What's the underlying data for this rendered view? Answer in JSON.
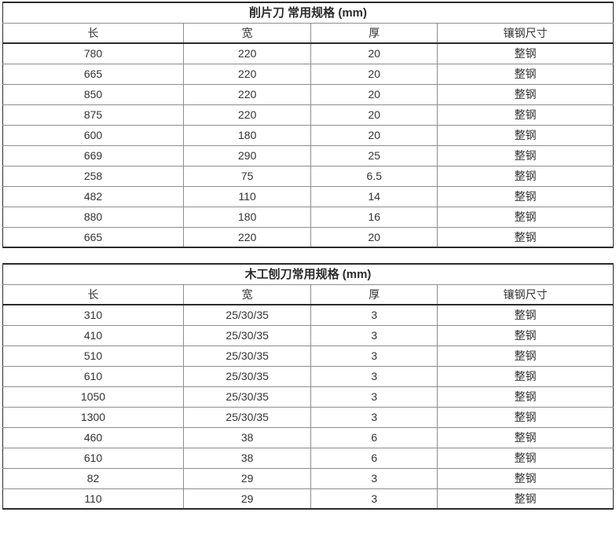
{
  "page": {
    "background_color": "#ffffff",
    "text_color": "#333333",
    "inner_border_color": "#8d8d8d",
    "outer_border_color": "#2b2b2b"
  },
  "tables": [
    {
      "title": "削片刀 常用规格 (mm)",
      "headers": [
        "长",
        "宽",
        "厚",
        "镶钢尺寸"
      ],
      "rows": [
        [
          "780",
          "220",
          "20",
          "整钢"
        ],
        [
          "665",
          "220",
          "20",
          "整钢"
        ],
        [
          "850",
          "220",
          "20",
          "整钢"
        ],
        [
          "875",
          "220",
          "20",
          "整钢"
        ],
        [
          "600",
          "180",
          "20",
          "整钢"
        ],
        [
          "669",
          "290",
          "25",
          "整钢"
        ],
        [
          "258",
          "75",
          "6.5",
          "整钢"
        ],
        [
          "482",
          "110",
          "14",
          "整钢"
        ],
        [
          "880",
          "180",
          "16",
          "整钢"
        ],
        [
          "665",
          "220",
          "20",
          "整钢"
        ]
      ]
    },
    {
      "title": "木工刨刀常用规格 (mm)",
      "headers": [
        "长",
        "宽",
        "厚",
        "镶钢尺寸"
      ],
      "rows": [
        [
          "310",
          "25/30/35",
          "3",
          "整钢"
        ],
        [
          "410",
          "25/30/35",
          "3",
          "整钢"
        ],
        [
          "510",
          "25/30/35",
          "3",
          "整钢"
        ],
        [
          "610",
          "25/30/35",
          "3",
          "整钢"
        ],
        [
          "1050",
          "25/30/35",
          "3",
          "整钢"
        ],
        [
          "1300",
          "25/30/35",
          "3",
          "整钢"
        ],
        [
          "460",
          "38",
          "6",
          "整钢"
        ],
        [
          "610",
          "38",
          "6",
          "整钢"
        ],
        [
          "82",
          "29",
          "3",
          "整钢"
        ],
        [
          "110",
          "29",
          "3",
          "整钢"
        ]
      ]
    }
  ]
}
